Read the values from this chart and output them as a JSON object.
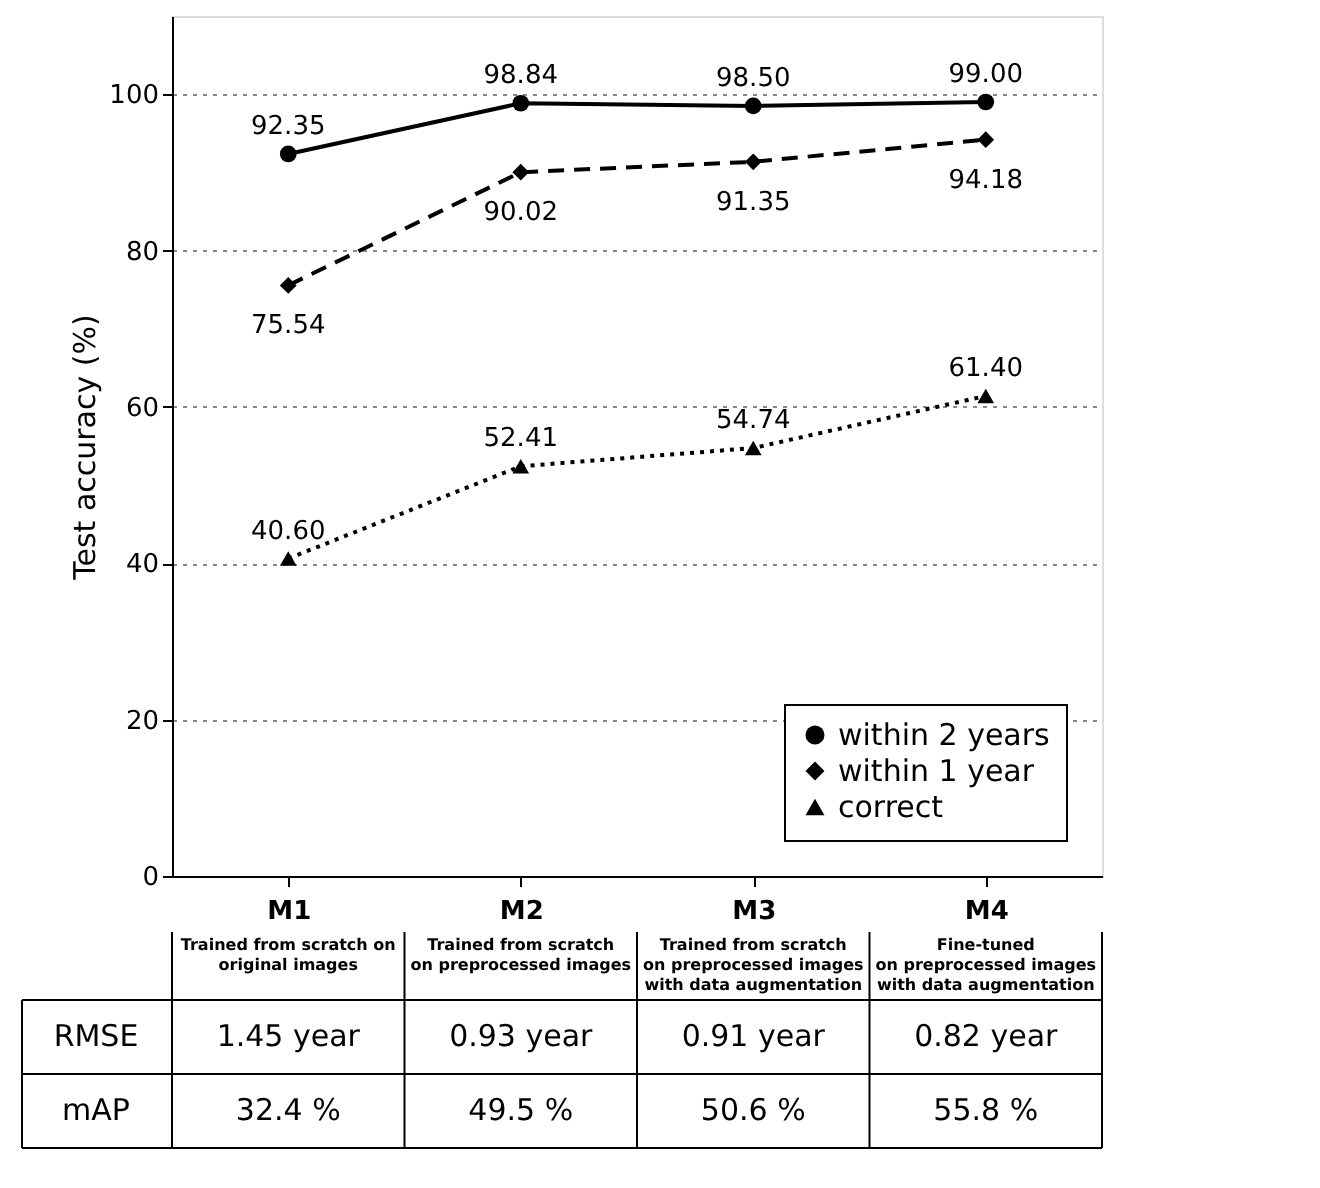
{
  "chart_data": {
    "type": "line",
    "categories": [
      "M1",
      "M2",
      "M3",
      "M4"
    ],
    "ylabel": "Test accuracy (%)",
    "ylim": [
      0,
      110
    ],
    "yticks": [
      0,
      20,
      40,
      60,
      80,
      100
    ],
    "grid": "y",
    "legend": "bottom right",
    "series": [
      {
        "name": "within 2 years",
        "color": "#000000",
        "marker": "circle",
        "line_style": "solid",
        "values": [
          92.35,
          98.84,
          98.5,
          99.0
        ],
        "value_labels": [
          "92.35",
          "98.84",
          "98.50",
          "99.00"
        ]
      },
      {
        "name": "within 1 year",
        "color": "#000000",
        "marker": "diamond",
        "line_style": "dashed",
        "values": [
          75.54,
          90.02,
          91.35,
          94.18
        ],
        "value_labels": [
          "75.54",
          "90.02",
          "91.35",
          "94.18"
        ]
      },
      {
        "name": "correct",
        "color": "#000000",
        "marker": "triangle",
        "line_style": "dotted",
        "values": [
          40.6,
          52.41,
          54.74,
          61.4
        ],
        "value_labels": [
          "40.60",
          "52.41",
          "54.74",
          "61.40"
        ]
      }
    ],
    "annotations": [
      "Trained from scratch on\noriginal images",
      "Trained from scratch\non preprocessed images",
      "Trained from scratch\non preprocessed images\nwith data augmentation",
      "Fine-tuned\non preprocessed images\nwith data augmentation",
      "RMSE",
      "1.45 year",
      "0.93 year",
      "0.91 year",
      "0.82 year",
      "mAP",
      "32.4 %",
      "49.5 %",
      "50.6 %",
      "55.8 %"
    ]
  }
}
